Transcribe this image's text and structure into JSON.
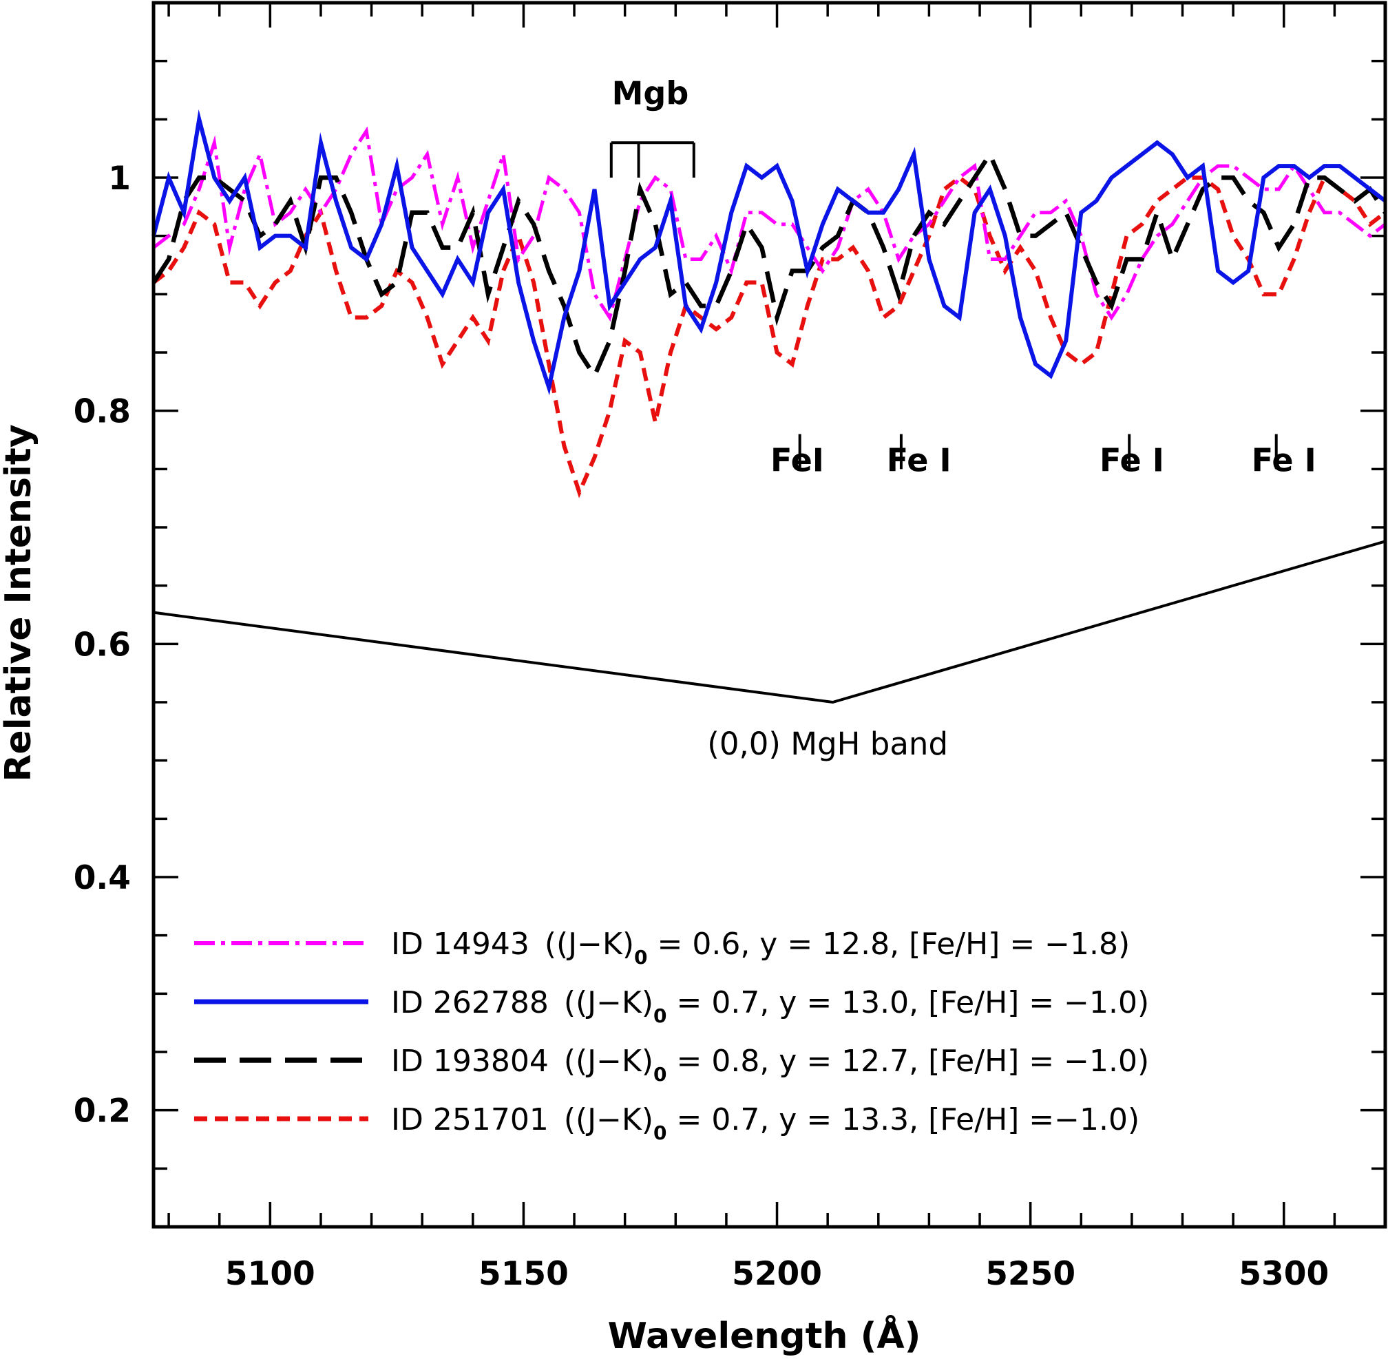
{
  "chart_data": {
    "type": "line",
    "xlabel": "Wavelength (Å)",
    "ylabel": "Relative Intensity",
    "xlim": [
      5077,
      5320
    ],
    "ylim": [
      0.1,
      1.15
    ],
    "xticks_major": [
      5100,
      5150,
      5200,
      5250,
      5300
    ],
    "xtick_labels": [
      "5100",
      "5150",
      "5200",
      "5250",
      "5300"
    ],
    "yticks_major": [
      0.2,
      0.4,
      0.6,
      0.8,
      1.0
    ],
    "ytick_labels": [
      "0.2",
      "0.4",
      "0.6",
      "0.8",
      "1"
    ],
    "series": [
      {
        "name": "ID 14943",
        "legend_id": "ID 14943",
        "legend_params": "((J−K)",
        "legend_sub": "0",
        "legend_rest": " = 0.6,  y = 12.8,  [Fe/H] = −1.8)",
        "color": "#ff00ff",
        "dash": "dashdot",
        "x": [
          5077,
          5080,
          5083,
          5086,
          5089,
          5092,
          5095,
          5098,
          5101,
          5104,
          5107,
          5110,
          5113,
          5116,
          5119,
          5122,
          5125,
          5128,
          5131,
          5134,
          5137,
          5140,
          5143,
          5146,
          5149,
          5152,
          5155,
          5158,
          5161,
          5164,
          5167,
          5170,
          5173,
          5176,
          5179,
          5182,
          5185,
          5188,
          5191,
          5194,
          5197,
          5200,
          5203,
          5206,
          5209,
          5212,
          5215,
          5218,
          5221,
          5224,
          5227,
          5230,
          5233,
          5236,
          5239,
          5242,
          5245,
          5248,
          5251,
          5254,
          5257,
          5260,
          5263,
          5266,
          5269,
          5272,
          5275,
          5278,
          5281,
          5284,
          5287,
          5290,
          5293,
          5296,
          5299,
          5302,
          5305,
          5308,
          5311,
          5314,
          5317,
          5320
        ],
        "values": [
          0.94,
          0.95,
          0.96,
          0.99,
          1.03,
          0.94,
          0.99,
          1.02,
          0.96,
          0.97,
          0.99,
          0.97,
          0.99,
          1.02,
          1.04,
          0.96,
          0.99,
          1.0,
          1.02,
          0.96,
          1.0,
          0.94,
          0.98,
          1.02,
          0.93,
          0.95,
          1.0,
          0.99,
          0.97,
          0.9,
          0.88,
          0.93,
          0.98,
          1.0,
          0.99,
          0.93,
          0.93,
          0.95,
          0.92,
          0.97,
          0.97,
          0.96,
          0.96,
          0.94,
          0.92,
          0.94,
          0.98,
          0.99,
          0.97,
          0.93,
          0.95,
          0.96,
          0.98,
          1.0,
          1.01,
          0.93,
          0.93,
          0.95,
          0.97,
          0.97,
          0.98,
          0.95,
          0.9,
          0.88,
          0.9,
          0.93,
          0.95,
          0.96,
          0.98,
          1.0,
          1.01,
          1.01,
          1.0,
          0.99,
          0.99,
          1.01,
          0.99,
          0.97,
          0.97,
          0.96,
          0.95,
          0.96
        ]
      },
      {
        "name": "ID 262788",
        "legend_id": "ID 262788",
        "legend_params": "((J−K)",
        "legend_sub": "0",
        "legend_rest": " = 0.7,  y = 13.0,  [Fe/H] = −1.0)",
        "color": "#0a14e6",
        "dash": "solid",
        "x": [
          5077,
          5080,
          5083,
          5086,
          5089,
          5092,
          5095,
          5098,
          5101,
          5104,
          5107,
          5110,
          5113,
          5116,
          5119,
          5122,
          5125,
          5128,
          5131,
          5134,
          5137,
          5140,
          5143,
          5146,
          5149,
          5152,
          5155,
          5158,
          5161,
          5164,
          5167,
          5170,
          5173,
          5176,
          5179,
          5182,
          5185,
          5188,
          5191,
          5194,
          5197,
          5200,
          5203,
          5206,
          5209,
          5212,
          5215,
          5218,
          5221,
          5224,
          5227,
          5230,
          5233,
          5236,
          5239,
          5242,
          5245,
          5248,
          5251,
          5254,
          5257,
          5260,
          5263,
          5266,
          5269,
          5272,
          5275,
          5278,
          5281,
          5284,
          5287,
          5290,
          5293,
          5296,
          5299,
          5302,
          5305,
          5308,
          5311,
          5314,
          5317,
          5320
        ],
        "values": [
          0.95,
          1.0,
          0.97,
          1.05,
          1.0,
          0.98,
          1.0,
          0.94,
          0.95,
          0.95,
          0.94,
          1.03,
          0.98,
          0.94,
          0.93,
          0.96,
          1.01,
          0.94,
          0.92,
          0.9,
          0.93,
          0.91,
          0.97,
          0.99,
          0.91,
          0.86,
          0.82,
          0.88,
          0.92,
          0.99,
          0.89,
          0.91,
          0.93,
          0.94,
          0.98,
          0.89,
          0.87,
          0.91,
          0.97,
          1.01,
          1.0,
          1.01,
          0.98,
          0.92,
          0.96,
          0.99,
          0.98,
          0.97,
          0.97,
          0.99,
          1.02,
          0.93,
          0.89,
          0.88,
          0.97,
          0.99,
          0.95,
          0.88,
          0.84,
          0.83,
          0.86,
          0.97,
          0.98,
          1.0,
          1.01,
          1.02,
          1.03,
          1.02,
          1.0,
          1.01,
          0.92,
          0.91,
          0.92,
          1.0,
          1.01,
          1.01,
          1.0,
          1.01,
          1.01,
          1.0,
          0.99,
          0.98
        ],
        "values_note": "approximate trace read from figure"
      },
      {
        "name": "ID 193804",
        "legend_id": "ID 193804",
        "legend_params": "((J−K)",
        "legend_sub": "0",
        "legend_rest": " = 0.8,  y = 12.7,  [Fe/H] = −1.0)",
        "color": "#000000",
        "dash": "longdash",
        "x": [
          5077,
          5080,
          5083,
          5086,
          5089,
          5092,
          5095,
          5098,
          5101,
          5104,
          5107,
          5110,
          5113,
          5116,
          5119,
          5122,
          5125,
          5128,
          5131,
          5134,
          5137,
          5140,
          5143,
          5146,
          5149,
          5152,
          5155,
          5158,
          5161,
          5164,
          5167,
          5170,
          5173,
          5176,
          5179,
          5182,
          5185,
          5188,
          5191,
          5194,
          5197,
          5200,
          5203,
          5206,
          5209,
          5212,
          5215,
          5218,
          5221,
          5224,
          5227,
          5230,
          5233,
          5236,
          5239,
          5242,
          5245,
          5248,
          5251,
          5254,
          5257,
          5260,
          5263,
          5266,
          5269,
          5272,
          5275,
          5278,
          5281,
          5284,
          5287,
          5290,
          5293,
          5296,
          5299,
          5302,
          5305,
          5308,
          5311,
          5314,
          5317,
          5320
        ],
        "values": [
          0.91,
          0.93,
          0.98,
          1.0,
          1.0,
          0.99,
          0.98,
          0.95,
          0.96,
          0.98,
          0.94,
          1.0,
          1.0,
          0.97,
          0.93,
          0.9,
          0.91,
          0.97,
          0.97,
          0.94,
          0.94,
          0.97,
          0.9,
          0.94,
          0.98,
          0.96,
          0.92,
          0.89,
          0.85,
          0.83,
          0.86,
          0.92,
          0.99,
          0.96,
          0.9,
          0.91,
          0.89,
          0.89,
          0.92,
          0.96,
          0.94,
          0.88,
          0.92,
          0.92,
          0.94,
          0.95,
          0.98,
          0.97,
          0.94,
          0.9,
          0.95,
          0.97,
          0.96,
          0.98,
          1.0,
          1.02,
          0.99,
          0.95,
          0.95,
          0.96,
          0.97,
          0.94,
          0.91,
          0.89,
          0.93,
          0.93,
          0.97,
          0.93,
          0.96,
          0.99,
          1.0,
          1.0,
          0.98,
          0.97,
          0.94,
          0.96,
          1.0,
          1.0,
          0.99,
          0.98,
          0.99,
          0.97
        ],
        "values_note": "approximate trace read from figure"
      },
      {
        "name": "ID 251701",
        "legend_id": "ID 251701",
        "legend_params": "((J−K)",
        "legend_sub": "0",
        "legend_rest": " = 0.7,  y = 13.3,  [Fe/H] =−1.0)",
        "color": "#e8100f",
        "dash": "shortdash",
        "x": [
          5077,
          5080,
          5083,
          5086,
          5089,
          5092,
          5095,
          5098,
          5101,
          5104,
          5107,
          5110,
          5113,
          5116,
          5119,
          5122,
          5125,
          5128,
          5131,
          5134,
          5137,
          5140,
          5143,
          5146,
          5149,
          5152,
          5155,
          5158,
          5161,
          5164,
          5167,
          5170,
          5173,
          5176,
          5179,
          5182,
          5185,
          5188,
          5191,
          5194,
          5197,
          5200,
          5203,
          5206,
          5209,
          5212,
          5215,
          5218,
          5221,
          5224,
          5227,
          5230,
          5233,
          5236,
          5239,
          5242,
          5245,
          5248,
          5251,
          5254,
          5257,
          5260,
          5263,
          5266,
          5269,
          5272,
          5275,
          5278,
          5281,
          5284,
          5287,
          5290,
          5293,
          5296,
          5299,
          5302,
          5305,
          5308,
          5311,
          5314,
          5317,
          5320
        ],
        "values": [
          0.91,
          0.92,
          0.94,
          0.97,
          0.96,
          0.91,
          0.91,
          0.89,
          0.91,
          0.92,
          0.95,
          0.97,
          0.92,
          0.88,
          0.88,
          0.89,
          0.92,
          0.91,
          0.88,
          0.84,
          0.86,
          0.88,
          0.86,
          0.92,
          0.95,
          0.91,
          0.84,
          0.77,
          0.73,
          0.76,
          0.8,
          0.86,
          0.85,
          0.79,
          0.85,
          0.89,
          0.88,
          0.87,
          0.88,
          0.91,
          0.91,
          0.85,
          0.84,
          0.89,
          0.93,
          0.93,
          0.94,
          0.92,
          0.88,
          0.89,
          0.92,
          0.95,
          0.99,
          1.0,
          0.99,
          0.95,
          0.92,
          0.94,
          0.92,
          0.88,
          0.85,
          0.84,
          0.85,
          0.9,
          0.95,
          0.96,
          0.98,
          0.99,
          1.0,
          1.0,
          0.99,
          0.95,
          0.93,
          0.9,
          0.9,
          0.93,
          0.97,
          1.0,
          0.99,
          0.98,
          0.96,
          0.97
        ],
        "values_note": "approximate trace read from figure"
      }
    ],
    "annotations": [
      {
        "text": "Mgb",
        "x": 5175,
        "y": 1.063
      },
      {
        "text": "FeI",
        "x": 5204,
        "y": 0.748
      },
      {
        "text": "Fe I",
        "x": 5228,
        "y": 0.748
      },
      {
        "text": "Fe I",
        "x": 5270,
        "y": 0.748
      },
      {
        "text": "Fe I",
        "x": 5300,
        "y": 0.748
      },
      {
        "text": "(0,0) MgH band",
        "x": 5210,
        "y": 0.505
      }
    ],
    "line_markers": [
      {
        "x": 5204.5,
        "y_from": 0.75,
        "y_to": 0.78
      },
      {
        "x": 5224.5,
        "y_from": 0.75,
        "y_to": 0.78
      },
      {
        "x": 5269.5,
        "y_from": 0.75,
        "y_to": 0.78
      },
      {
        "x": 5298.5,
        "y_from": 0.75,
        "y_to": 0.78
      }
    ],
    "mgb_bracket": {
      "x": [
        5167.3,
        5172.7,
        5183.6
      ],
      "y_top": 1.03,
      "y_bottom": 1.0
    },
    "mgh_band": {
      "x": [
        5077,
        5211,
        5320
      ],
      "y": [
        0.627,
        0.55,
        0.688
      ]
    },
    "legend_placement": "bottom-right"
  }
}
